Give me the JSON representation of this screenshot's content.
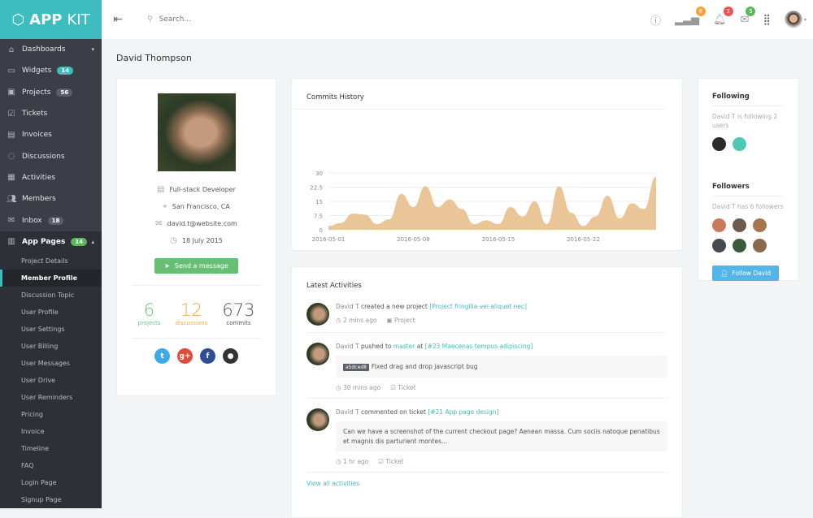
{
  "app": {
    "logo_bold": "APP",
    "logo_light": "KIT"
  },
  "sidebar": {
    "items": [
      {
        "label": "Dashboards",
        "icon": "home-icon",
        "caret": "▾"
      },
      {
        "label": "Widgets",
        "icon": "inbox-icon",
        "badge": "14",
        "badge_color": "teal"
      },
      {
        "label": "Projects",
        "icon": "briefcase-icon",
        "badge": "56"
      },
      {
        "label": "Tickets",
        "icon": "checkbox-icon"
      },
      {
        "label": "Invoices",
        "icon": "document-icon"
      },
      {
        "label": "Discussions",
        "icon": "chat-icon"
      },
      {
        "label": "Activities",
        "icon": "presentation-icon"
      },
      {
        "label": "Members",
        "icon": "users-icon"
      },
      {
        "label": "Inbox",
        "icon": "mail-icon",
        "badge": "18"
      }
    ],
    "app_pages": {
      "label": "App Pages",
      "badge": "14",
      "caret": "▴"
    },
    "sub_items": [
      "Project Details",
      "Member Profile",
      "Discussion Topic",
      "User Profile",
      "User Settings",
      "User Billing",
      "User Messages",
      "User Drive",
      "User Reminders",
      "Pricing",
      "Invoice",
      "Timeline",
      "FAQ",
      "Login Page",
      "Signup Page"
    ],
    "active": "Member Profile"
  },
  "header": {
    "search_placeholder": "Search...",
    "badges": {
      "activity": "8",
      "notifications": "3",
      "messages": "5"
    },
    "badge_colors": {
      "activity": "#f7a03a",
      "notifications": "#ef5350",
      "messages": "#5cb85c"
    }
  },
  "page_title": "David Thompson",
  "profile": {
    "role": "Full-stack Developer",
    "location": "San Francisco, CA",
    "email": "david.t@website.com",
    "joined": "18 July 2015",
    "send_label": "Send a message",
    "stats": [
      {
        "value": "6",
        "label": "projects",
        "color": "#6cc17a"
      },
      {
        "value": "12",
        "label": "discussions",
        "color": "#f7a74a"
      },
      {
        "value": "673",
        "label": "commits",
        "color": "#555"
      }
    ],
    "socials": [
      {
        "name": "twitter",
        "glyph": "t",
        "color": "#3fa9e8"
      },
      {
        "name": "google-plus",
        "glyph": "g+",
        "color": "#e04b3a"
      },
      {
        "name": "facebook",
        "glyph": "f",
        "color": "#2f4e98"
      },
      {
        "name": "github",
        "glyph": "●",
        "color": "#333"
      }
    ]
  },
  "chart_data": {
    "type": "area",
    "title": "Commits History",
    "x": [
      "2016-05-01",
      "2016-05-02",
      "2016-05-03",
      "2016-05-04",
      "2016-05-05",
      "2016-05-06",
      "2016-05-07",
      "2016-05-08",
      "2016-05-09",
      "2016-05-10",
      "2016-05-11",
      "2016-05-12",
      "2016-05-13",
      "2016-05-14",
      "2016-05-15",
      "2016-05-16",
      "2016-05-17",
      "2016-05-18",
      "2016-05-19",
      "2016-05-20",
      "2016-05-21",
      "2016-05-22",
      "2016-05-23",
      "2016-05-24",
      "2016-05-25",
      "2016-05-26",
      "2016-05-27",
      "2016-05-28"
    ],
    "values": [
      2,
      3.5,
      8.5,
      8,
      3,
      5.5,
      19,
      12,
      23,
      12,
      16,
      11,
      3,
      5,
      3,
      12,
      7,
      15,
      3,
      23,
      9,
      2,
      7,
      18,
      6,
      14,
      11,
      28
    ],
    "x_ticks": [
      "2016-05-01",
      "2016-05-08",
      "2016-05-15",
      "2016-05-22"
    ],
    "y_ticks": [
      "0",
      "7.5",
      "15",
      "22.5",
      "30"
    ],
    "ylim": [
      0,
      30
    ],
    "grid": true,
    "color": "#eac597"
  },
  "activities": {
    "title": "Latest Activities",
    "items": [
      {
        "who": "David T",
        "action": "created a new project",
        "link": "[Project fringilla vel aliquet nec]",
        "time": "2 mins ago",
        "tag": "Project"
      },
      {
        "who": "David T",
        "action": "pushed to",
        "branch": "master",
        "at": "at",
        "link": "[#23 Maecenas tempus adipiscing]",
        "sha": "a5dced8",
        "msg": "Fixed drag and drop javascript bug",
        "time": "30 mins ago",
        "tag": "Ticket"
      },
      {
        "who": "David T",
        "action": "commented on ticket",
        "link": "[#21 App page design]",
        "comment": "Can we have a screenshot of the current checkout page? Aenean massa. Cum sociis natoque penatibus et magnis dis parturient montes...",
        "time": "1 hr ago",
        "tag": "Ticket"
      }
    ],
    "view_all": "View all activities"
  },
  "following": {
    "title": "Following",
    "text": "David T is following 2 users"
  },
  "followers": {
    "title": "Followers",
    "text": "David T has 6 followers",
    "button": "Follow David"
  }
}
